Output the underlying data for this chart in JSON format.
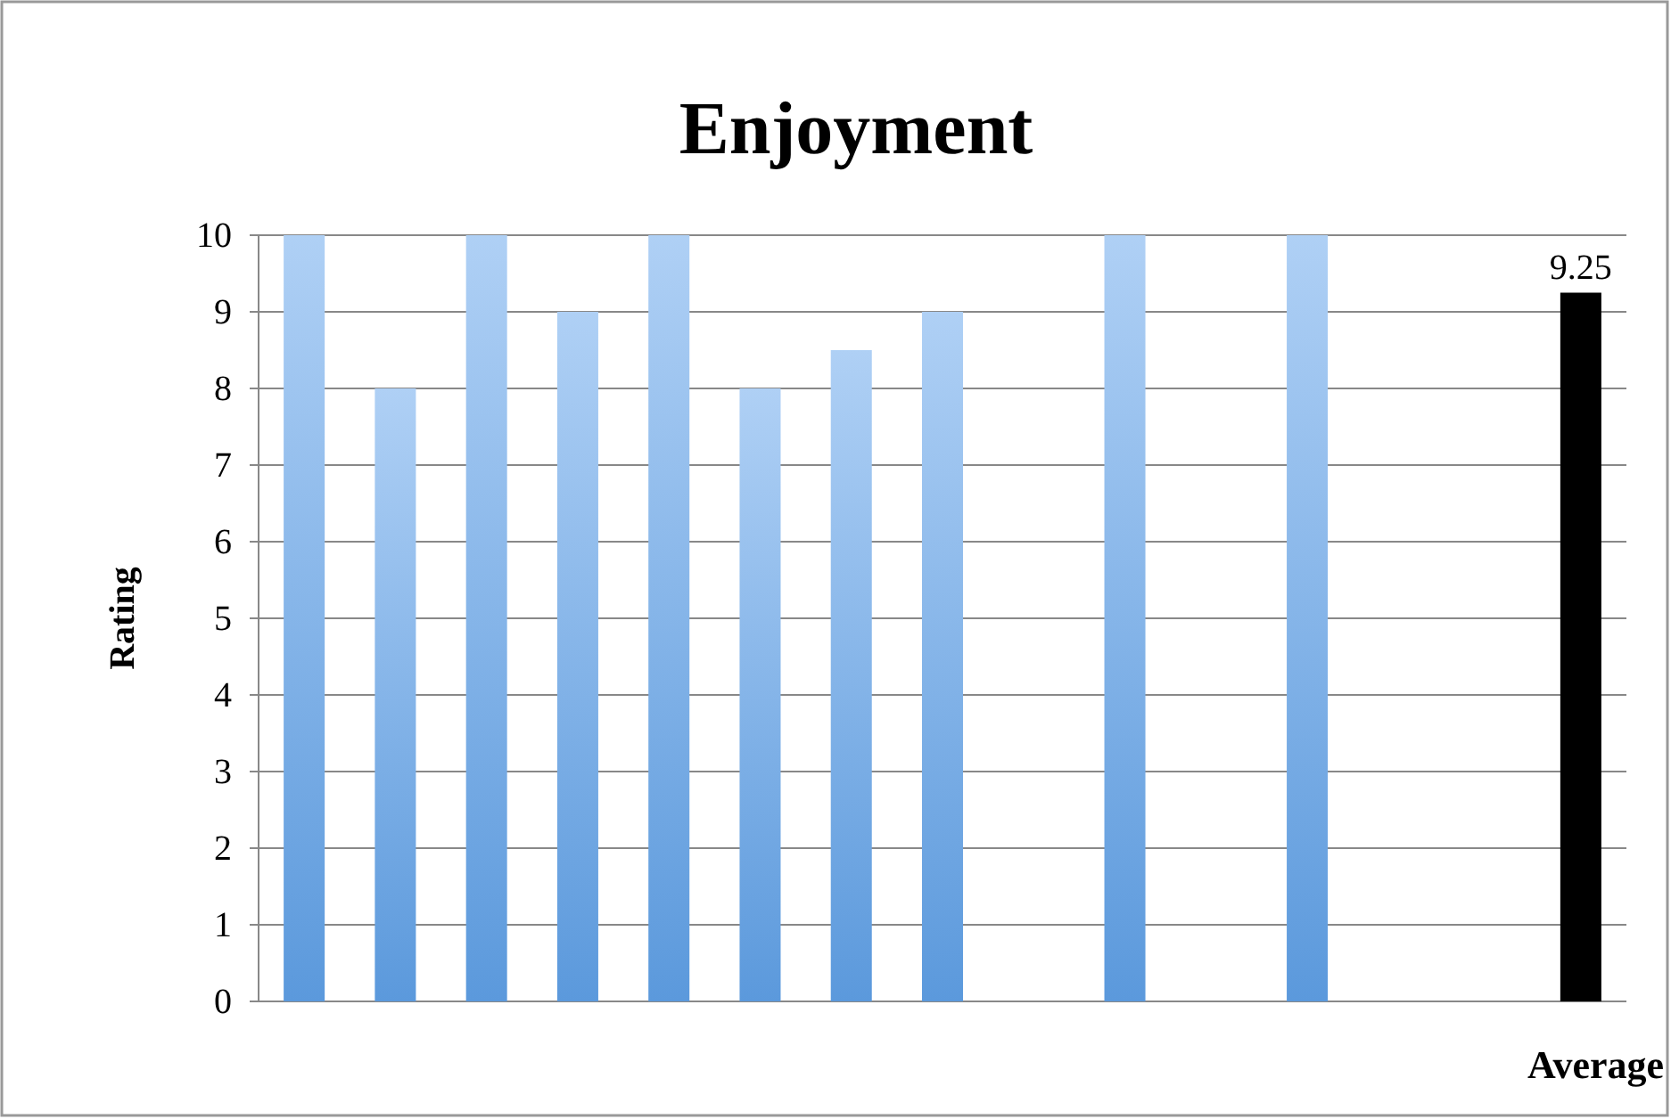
{
  "chart_data": {
    "type": "bar",
    "title": "Enjoyment",
    "ylabel": "Rating",
    "xlabel": "Average",
    "categories": [
      null,
      null,
      null,
      null,
      null,
      null,
      null,
      null,
      null,
      null,
      null,
      null,
      null,
      null,
      null
    ],
    "values": [
      10,
      8,
      10,
      9,
      10,
      8,
      8.5,
      9,
      null,
      10,
      null,
      10,
      null,
      null,
      9.25
    ],
    "value_labels": [
      null,
      null,
      null,
      null,
      null,
      null,
      null,
      null,
      null,
      null,
      null,
      null,
      null,
      null,
      "9.25"
    ],
    "colors": [
      "#8cbcf0",
      "#8cbcf0",
      "#8cbcf0",
      "#8cbcf0",
      "#8cbcf0",
      "#8cbcf0",
      "#8cbcf0",
      "#8cbcf0",
      null,
      "#8cbcf0",
      null,
      "#8cbcf0",
      null,
      null,
      "#000000"
    ],
    "ylim": [
      0,
      10
    ],
    "yticks": [
      0,
      1,
      2,
      3,
      4,
      5,
      6,
      7,
      8,
      9,
      10
    ],
    "grid": "y"
  }
}
